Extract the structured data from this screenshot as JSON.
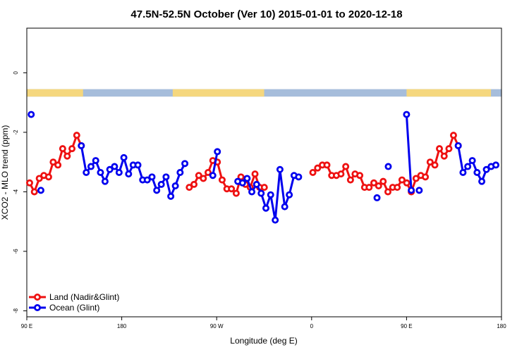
{
  "chart_data": {
    "type": "line",
    "title": "47.5N-52.5N October (Ver 10)   2015-01-01 to 2020-12-18",
    "xlabel": "Longitude (deg E)",
    "ylabel": "XCO2 - MLO trend (ppm)",
    "xlim": [
      -90,
      180
    ],
    "ylim": [
      -8.2,
      1.5
    ],
    "x_ticks": [
      {
        "value": -90,
        "label": "90 E"
      },
      {
        "value": -36,
        "label": "180"
      },
      {
        "value": 18,
        "label": "90 W"
      },
      {
        "value": 72,
        "label": "0"
      },
      {
        "value": 126,
        "label": "90 E"
      },
      {
        "value": 180,
        "label": "180"
      }
    ],
    "y_ticks": [
      {
        "value": 0,
        "label": "0"
      },
      {
        "value": -2,
        "label": "-2"
      },
      {
        "value": -4,
        "label": "-4"
      },
      {
        "value": -6,
        "label": "-6"
      },
      {
        "value": -8,
        "label": "-8"
      }
    ],
    "grid": false,
    "legend_position": "bottom-left",
    "land_mask": {
      "y_range": [
        -0.55,
        -0.8
      ],
      "land_color": "#f5d77e",
      "ocean_color": "#a6bddb",
      "land_segments": [
        [
          -90,
          -58
        ],
        [
          -7,
          45
        ],
        [
          126,
          174
        ]
      ]
    },
    "series": [
      {
        "name": "Land (Nadir&Glint)",
        "color": "#ee1111",
        "x": [
          -88.4,
          -85.7,
          -82.9,
          -80.3,
          -77.6,
          -75.0,
          -72.3,
          -69.6,
          -67.0,
          -64.3,
          -61.6,
          -59.0,
          2.4,
          5.1,
          7.8,
          10.4,
          13.1,
          15.8,
          18.4,
          21.1,
          23.8,
          26.4,
          29.1,
          31.8,
          34.4,
          37.1,
          39.8,
          42.4,
          45.1,
          72.7,
          75.4,
          78.1,
          80.7,
          83.4,
          86.1,
          88.7,
          91.4,
          94.1,
          96.7,
          99.4,
          102.1,
          104.7,
          107.4,
          110.1,
          112.7,
          115.4,
          118.1,
          120.7,
          123.4,
          126.1,
          128.7,
          131.4,
          134.1,
          136.7,
          139.4,
          142.1,
          144.7,
          147.4,
          150.1,
          152.7,
          155.4
        ],
        "y": [
          -3.7,
          -4.0,
          -3.55,
          -3.45,
          -3.5,
          -3.0,
          -3.1,
          -2.55,
          -2.8,
          -2.55,
          -2.1,
          -2.45,
          -3.85,
          -3.75,
          -3.45,
          -3.55,
          -3.35,
          -2.95,
          -3.0,
          -3.6,
          -3.9,
          -3.9,
          -4.05,
          -3.5,
          -3.75,
          -3.85,
          -3.4,
          -3.85,
          -3.85,
          -3.35,
          -3.2,
          -3.1,
          -3.1,
          -3.45,
          -3.45,
          -3.4,
          -3.15,
          -3.6,
          -3.4,
          -3.45,
          -3.85,
          -3.85,
          -3.7,
          -3.8,
          -3.65,
          -4.0,
          -3.85,
          -3.85,
          -3.6,
          -3.7,
          -4.0,
          -3.55,
          -3.45,
          -3.5,
          -3.0,
          -3.1,
          -2.55,
          -2.8,
          -2.55,
          -2.1,
          -2.45
        ]
      },
      {
        "name": "Ocean (Glint)",
        "color": "#0000ee",
        "x": [
          -87.5,
          -82.0,
          -59.0,
          -56.2,
          -53.5,
          -50.8,
          -48.1,
          -45.5,
          -42.8,
          -40.1,
          -37.5,
          -34.8,
          -32.1,
          -29.5,
          -26.8,
          -24.1,
          -21.5,
          -18.8,
          -16.1,
          -13.5,
          -10.8,
          -8.1,
          -5.5,
          -2.8,
          -0.1,
          15.8,
          18.4,
          30.0,
          32.7,
          35.3,
          38.0,
          40.7,
          43.3,
          46.0,
          48.7,
          51.3,
          54.0,
          56.7,
          59.3,
          62.0,
          64.6,
          67.3,
          70.0,
          72.7,
          75.4,
          109.2,
          115.6,
          126.0,
          128.7,
          133.2,
          155.4,
          158.1,
          160.8,
          163.4,
          166.1,
          168.8,
          171.4,
          174.1,
          176.8,
          179.4
        ],
        "y": [
          -1.4,
          -3.95,
          -2.45,
          -3.35,
          -3.15,
          -2.95,
          -3.35,
          -3.65,
          -3.25,
          -3.15,
          -3.35,
          -2.85,
          -3.4,
          -3.1,
          -3.1,
          -3.6,
          -3.6,
          -3.5,
          -3.95,
          -3.75,
          -3.5,
          -4.15,
          -3.8,
          -3.35,
          -3.05,
          -3.45,
          -2.65,
          -3.65,
          -3.7,
          -3.55,
          -4.0,
          -3.75,
          -4.05,
          -4.55,
          -4.1,
          -4.95,
          -3.25,
          -4.5,
          -4.1,
          -3.45,
          -3.5,
          null,
          null,
          null,
          null,
          -4.2,
          -3.15,
          -1.4,
          -3.95,
          -3.95,
          -2.45,
          -3.35,
          -3.15,
          -2.95,
          -3.35,
          -3.65,
          -3.25,
          -3.15,
          -3.1,
          null
        ],
        "note_breaks": true
      }
    ]
  }
}
